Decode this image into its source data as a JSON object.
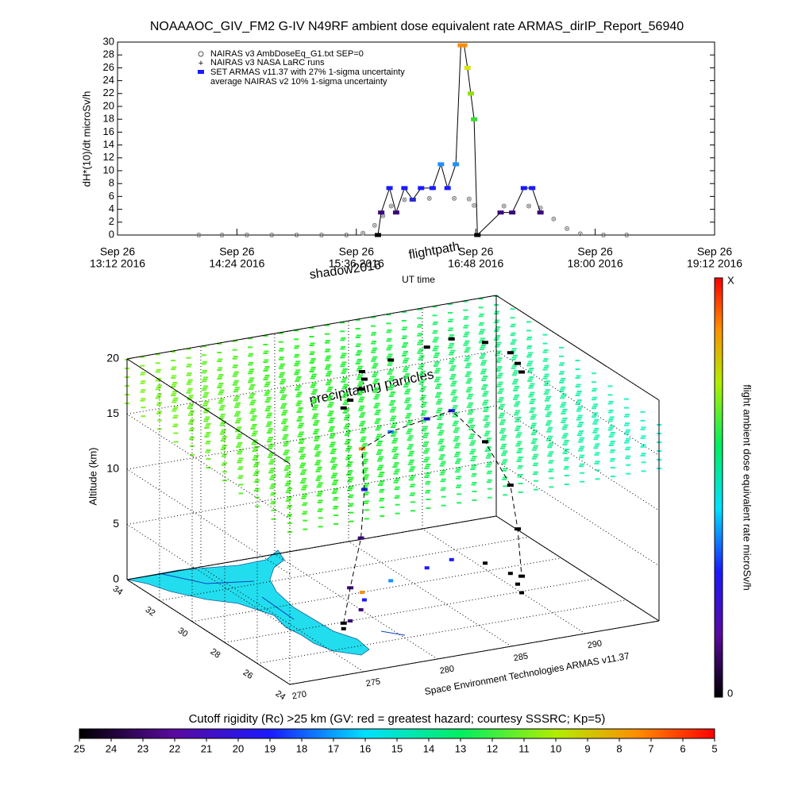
{
  "chart_data": [
    {
      "type": "line",
      "title": "NOAAAOC_GIV_FM2 G-IV   N49RF  ambient dose equivalent rate ARMAS_dirIP_Report_56940",
      "xlabel": "UT time",
      "ylabel": "dH*(10)/dt microSv/h",
      "legend_extra": [
        "NAIRAS v3 NASA LaRC runs",
        "average NAIRAS v2 10% 1-sigma uncertainty"
      ],
      "xlim": [
        "13:12",
        "19:12"
      ],
      "xticks": [
        {
          "value": "13:12",
          "label": [
            "Sep 26",
            "13:12 2016"
          ]
        },
        {
          "value": "14:24",
          "label": [
            "Sep 26",
            "14:24 2016"
          ]
        },
        {
          "value": "15:36",
          "label": [
            "Sep 26",
            "15:36 2016"
          ]
        },
        {
          "value": "16:48",
          "label": [
            "Sep 26",
            "16:48 2016"
          ]
        },
        {
          "value": "18:00",
          "label": [
            "Sep 26",
            "18:00 2016"
          ]
        },
        {
          "value": "19:12",
          "label": [
            "Sep 26",
            "19:12 2016"
          ]
        }
      ],
      "ylim": [
        0,
        30
      ],
      "yticks": [
        0,
        2,
        4,
        6,
        8,
        10,
        12,
        14,
        16,
        18,
        20,
        22,
        24,
        26,
        28,
        30
      ],
      "series": [
        {
          "name": "NAIRAS v3 AmbDoseEq_G1.txt SEP=0",
          "color": "#808080",
          "x": [
            "14:01",
            "14:15",
            "14:30",
            "14:45",
            "15:00",
            "15:15",
            "15:30",
            "15:40",
            "15:47",
            "15:52",
            "15:57",
            "16:05",
            "16:20",
            "16:35",
            "16:44",
            "16:47",
            "17:05",
            "17:20",
            "17:27",
            "17:35",
            "17:43",
            "17:51",
            "18:05",
            "18:19"
          ],
          "values": [
            0,
            0,
            0,
            0,
            0,
            0,
            0,
            0.3,
            1.5,
            3,
            4.5,
            5.5,
            5.7,
            5.7,
            5.6,
            4.6,
            4.5,
            4.5,
            4.2,
            2.5,
            1,
            0.2,
            0,
            0
          ]
        },
        {
          "name": "SET ARMAS v11.37 with 27% 1-sigma uncertainty",
          "color": "#000000",
          "x": [
            "15:49",
            "15:51",
            "15:56",
            "16:00",
            "16:05",
            "16:10",
            "16:15",
            "16:22",
            "16:27",
            "16:31",
            "16:36",
            "16:39",
            "16:41",
            "16:43",
            "16:45",
            "16:47",
            "16:49",
            "17:03",
            "17:10",
            "17:17",
            "17:22",
            "17:27"
          ],
          "values": [
            0,
            3.5,
            7.3,
            3.5,
            7.3,
            5.5,
            7.3,
            7.3,
            11,
            7.3,
            11,
            29.5,
            29.5,
            26,
            22,
            18,
            0,
            3.5,
            3.5,
            7.3,
            7.3,
            3.5
          ],
          "colors": [
            "#000000",
            "#3a0a7a",
            "#1a1aff",
            "#3a0a7a",
            "#1a1aff",
            "#2a2ad0",
            "#1a1aff",
            "#1a1aff",
            "#1e90ff",
            "#1a1aff",
            "#1e90ff",
            "#ff8c00",
            "#ff8c00",
            "#d8e600",
            "#8fe000",
            "#33dd33",
            "#000000",
            "#3a0a7a",
            "#3a0a7a",
            "#1a1aff",
            "#1a1aff",
            "#3a0a7a"
          ]
        }
      ]
    },
    {
      "type": "scatter3d",
      "zlabel": "Altitude (km)",
      "zlim": [
        0,
        20
      ],
      "zticks": [
        0,
        5,
        10,
        15,
        20
      ],
      "ylim": [
        34,
        24
      ],
      "yticks": [
        34,
        32,
        30,
        28,
        26,
        24
      ],
      "xlim": [
        270,
        295
      ],
      "xticks": [
        270,
        275,
        280,
        285,
        290
      ],
      "annotations": [
        "shadow2016",
        "flightpath",
        "precipitating particles",
        "Space Environment Technologies ARMAS v11.37"
      ],
      "flight": {
        "lat": [
          27.5,
          28,
          28.7,
          29.4,
          30,
          30.5,
          31,
          31.3,
          30.6,
          29.5,
          28.6,
          27.9
        ],
        "lon": [
          277.5,
          278.5,
          280,
          281,
          281.5,
          284,
          287,
          289,
          290.5,
          291,
          290.5,
          290
        ],
        "alt": [
          0.5,
          3,
          6.5,
          10,
          13,
          13.5,
          13.5,
          13.5,
          11,
          8,
          5,
          1.5
        ],
        "colors": [
          "#000000",
          "#3a0a7a",
          "#3a0a7a",
          "#1a1aff",
          "#ff8c00",
          "#1e90ff",
          "#1a1aff",
          "#1a1aff",
          "#000000",
          "#000000",
          "#000000",
          "#000000"
        ]
      },
      "colorbar": {
        "label": "flight ambient dose equivalent rate microSv/h",
        "max_label": "X",
        "min": 0
      }
    },
    {
      "type": "colorbar",
      "title": "Cutoff rigidity (Rc) >25 km (GV: red = greatest hazard; courtesy SSSRC; Kp=5)",
      "lim": [
        25,
        5
      ],
      "ticks": [
        25,
        24,
        23,
        22,
        21,
        20,
        19,
        18,
        17,
        16,
        15,
        14,
        13,
        12,
        11,
        10,
        9,
        8,
        7,
        6,
        5
      ]
    }
  ]
}
